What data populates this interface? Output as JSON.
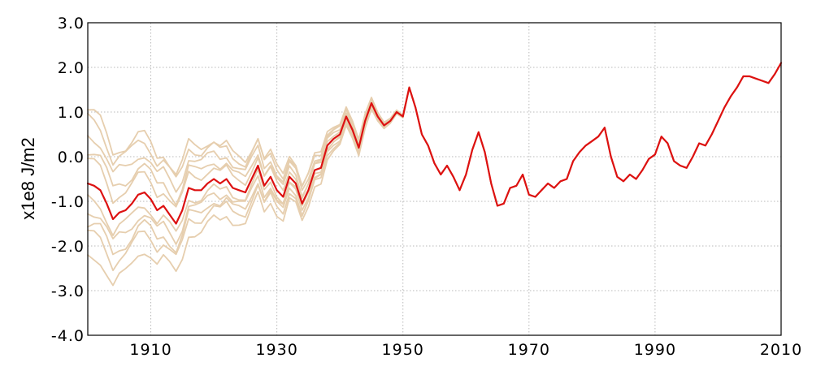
{
  "chart_data": {
    "type": "line",
    "title": "",
    "xlabel": "",
    "ylabel": "x1e8 J/m2",
    "xlim": [
      1900,
      2010
    ],
    "ylim": [
      -4.0,
      3.0
    ],
    "xticks": [
      1910,
      1930,
      1950,
      1970,
      1990,
      2010
    ],
    "yticks": [
      3.0,
      2.0,
      1.0,
      0.0,
      -1.0,
      -2.0,
      -3.0,
      -4.0
    ],
    "xtick_labels": [
      "1910",
      "1930",
      "1950",
      "1970",
      "1990",
      "2010"
    ],
    "ytick_labels": [
      "3.0",
      "2.0",
      "1.0",
      "0.0",
      "-1.0",
      "-2.0",
      "-3.0",
      "-4.0"
    ],
    "grid": true,
    "legend": "none",
    "colors": {
      "mean": "#dd1111",
      "ensemble": "#e6ceae"
    },
    "ensemble_offsets_1900": [
      1.65,
      1.45,
      1.1,
      0.75,
      0.5,
      -0.35,
      -0.6,
      -0.9,
      -1.15,
      -1.65
    ],
    "series": [
      {
        "x": [
          1900,
          1901,
          1902,
          1903,
          1904,
          1905,
          1906,
          1907,
          1908,
          1909,
          1910,
          1911,
          1912,
          1913,
          1914,
          1915,
          1916,
          1917,
          1918,
          1919,
          1920,
          1921,
          1922,
          1923,
          1924,
          1925,
          1926,
          1927,
          1928,
          1929,
          1930,
          1931,
          1932,
          1933,
          1934,
          1935,
          1936,
          1937,
          1938,
          1939,
          1940,
          1941,
          1942,
          1943,
          1944,
          1945,
          1946,
          1947,
          1948,
          1949,
          1950,
          1951,
          1952,
          1953,
          1954,
          1955,
          1956,
          1957,
          1958,
          1959,
          1960,
          1961,
          1962,
          1963,
          1964,
          1965,
          1966,
          1967,
          1968,
          1969,
          1970,
          1971,
          1972,
          1973,
          1974,
          1975,
          1976,
          1977,
          1978,
          1979,
          1980,
          1981,
          1982,
          1983,
          1984,
          1985,
          1986,
          1987,
          1988,
          1989,
          1990,
          1991,
          1992,
          1993,
          1994,
          1995,
          1996,
          1997,
          1998,
          1999,
          2000,
          2001,
          2002,
          2003,
          2004,
          2005,
          2006,
          2007,
          2008,
          2009,
          2010
        ],
        "y": [
          -0.6,
          -0.65,
          -0.75,
          -1.05,
          -1.4,
          -1.25,
          -1.2,
          -1.05,
          -0.85,
          -0.8,
          -0.95,
          -1.2,
          -1.1,
          -1.3,
          -1.5,
          -1.2,
          -0.7,
          -0.75,
          -0.75,
          -0.6,
          -0.5,
          -0.6,
          -0.5,
          -0.7,
          -0.75,
          -0.8,
          -0.5,
          -0.2,
          -0.65,
          -0.45,
          -0.75,
          -0.9,
          -0.45,
          -0.6,
          -1.05,
          -0.75,
          -0.3,
          -0.25,
          0.25,
          0.4,
          0.5,
          0.9,
          0.6,
          0.2,
          0.8,
          1.2,
          0.9,
          0.7,
          0.8,
          1.0,
          0.9,
          1.55,
          1.1,
          0.5,
          0.25,
          -0.15,
          -0.4,
          -0.2,
          -0.45,
          -0.75,
          -0.4,
          0.15,
          0.55,
          0.1,
          -0.6,
          -1.1,
          -1.05,
          -0.7,
          -0.65,
          -0.4,
          -0.85,
          -0.9,
          -0.75,
          -0.6,
          -0.7,
          -0.55,
          -0.5,
          -0.1,
          0.1,
          0.25,
          0.35,
          0.45,
          0.65,
          0.0,
          -0.45,
          -0.55,
          -0.4,
          -0.5,
          -0.3,
          -0.05,
          0.05,
          0.45,
          0.3,
          -0.1,
          -0.2,
          -0.25,
          0.0,
          0.3,
          0.25,
          0.5,
          0.8,
          1.1,
          1.35,
          1.55,
          1.8,
          1.8,
          1.75,
          1.7,
          1.65,
          1.85,
          2.1
        ]
      }
    ]
  }
}
